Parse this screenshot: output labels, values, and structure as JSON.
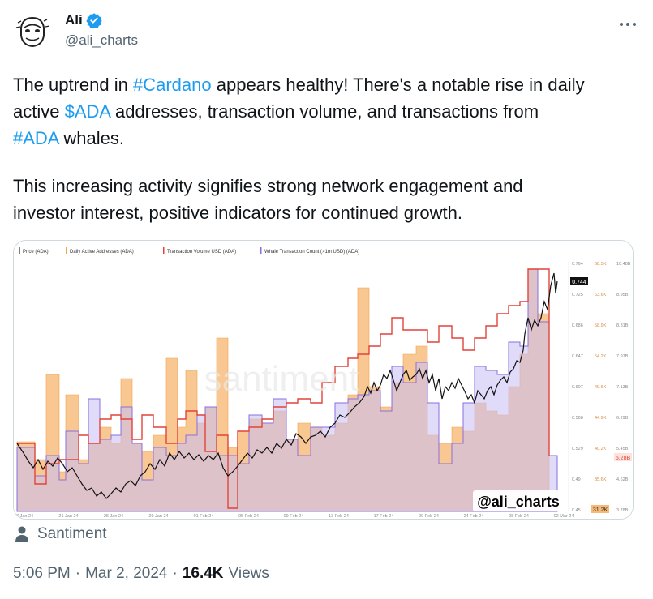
{
  "author": {
    "name": "Ali",
    "handle": "@ali_charts",
    "verified_color": "#1d9bf0"
  },
  "tweet": {
    "line1_a": "The uptrend in ",
    "line1_link": "#Cardano",
    "line1_b": " appears healthy! There's a notable rise in daily",
    "line2_a": "active ",
    "line2_link": "$ADA",
    "line2_b": " addresses, transaction volume, and transactions from",
    "line3_link": "#ADA",
    "line3_b": " whales.",
    "para2_line1": "This increasing activity signifies strong network engagement and",
    "para2_line2": "investor interest, positive indicators for continued growth."
  },
  "media": {
    "watermark": "santiment",
    "stamp": "@ali_charts",
    "legend": [
      {
        "label": "Price (ADA)",
        "color": "#000000"
      },
      {
        "label": "Daily Active Addresses (ADA)",
        "color": "#f5a84a"
      },
      {
        "label": "Transaction Volume USD (ADA)",
        "color": "#e0443a"
      },
      {
        "label": "Whale Transaction Count (>1m USD) (ADA)",
        "color": "#8a6fe0"
      }
    ],
    "x_ticks": [
      "17 Jan 24",
      "21 Jan 24",
      "25 Jan 24",
      "29 Jan 24",
      "01 Feb 24",
      "05 Feb 24",
      "09 Feb 24",
      "13 Feb 24",
      "17 Feb 24",
      "20 Feb 24",
      "24 Feb 24",
      "28 Feb 24",
      "02 Mar 24"
    ],
    "price_ticks": [
      "0.764",
      "0.725",
      "0.686",
      "0.647",
      "0.607",
      "0.568",
      "0.529",
      "0.49",
      "0.45"
    ],
    "address_ticks": [
      "68.5K",
      "63.6K",
      "58.9K",
      "54.2K",
      "49.6K",
      "44.9K",
      "40.2K",
      "35.6K",
      "31.2K"
    ],
    "volume_ticks": [
      "10.48B",
      "8.95B",
      "8.81B",
      "7.97B",
      "7.13B",
      "6.29B",
      "5.45B",
      "4.62B",
      "3.78B"
    ],
    "price_badge": "0.744",
    "volume_badge": "5.28B",
    "address_badge": "31.2K"
  },
  "source": {
    "label": "Santiment"
  },
  "meta": {
    "time": "5:06 PM",
    "sep1": "·",
    "date": "Mar 2, 2024",
    "sep2": "·",
    "views": "16.4K",
    "views_label": "Views"
  },
  "colors": {
    "link": "#1d9bf0",
    "text": "#0f1419",
    "muted": "#536471",
    "orange": "#f5a84a",
    "purple": "#8a6fe0",
    "red": "#e0443a"
  }
}
